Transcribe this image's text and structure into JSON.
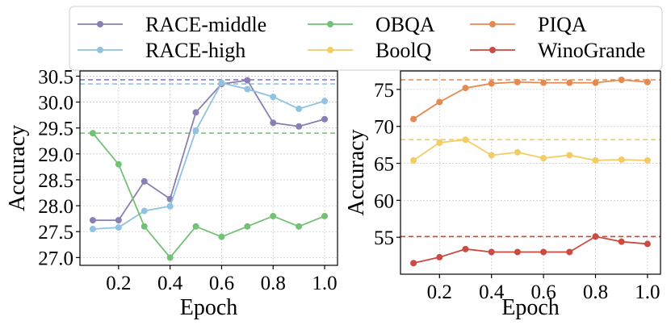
{
  "chart_data": [
    {
      "type": "line",
      "xlabel": "Epoch",
      "ylabel": "Accuracy",
      "xlim": [
        0.05,
        1.05
      ],
      "ylim": [
        26.85,
        30.6
      ],
      "xticks": [
        0.2,
        0.4,
        0.6,
        0.8,
        1.0
      ],
      "xtick_labels": [
        "0.2",
        "0.4",
        "0.6",
        "0.8",
        "1.0"
      ],
      "yticks": [
        27.0,
        27.5,
        28.0,
        28.5,
        29.0,
        29.5,
        30.0,
        30.5
      ],
      "ytick_labels": [
        "27.0",
        "27.5",
        "28.0",
        "28.5",
        "29.0",
        "29.5",
        "30.0",
        "30.5"
      ],
      "grid": true,
      "x": [
        0.1,
        0.2,
        0.3,
        0.4,
        0.5,
        0.6,
        0.7,
        0.8,
        0.9,
        1.0
      ],
      "series": [
        {
          "name": "RACE-middle",
          "color": "#8a7fb3",
          "values": [
            27.72,
            27.72,
            28.47,
            28.13,
            29.8,
            30.35,
            30.42,
            29.6,
            29.53,
            29.67
          ],
          "baseline": 30.43
        },
        {
          "name": "RACE-high",
          "color": "#8fc3df",
          "values": [
            27.55,
            27.58,
            27.9,
            27.99,
            29.45,
            30.37,
            30.25,
            30.1,
            29.87,
            30.02
          ],
          "baseline": 30.35
        },
        {
          "name": "OBQA",
          "color": "#72c175",
          "values": [
            29.4,
            28.8,
            27.6,
            27.0,
            27.6,
            27.4,
            27.6,
            27.8,
            27.6,
            27.8
          ],
          "baseline": 29.4
        }
      ]
    },
    {
      "type": "line",
      "xlabel": "Epoch",
      "ylabel": "Accuracy",
      "xlim": [
        0.05,
        1.05
      ],
      "ylim": [
        50.0,
        77.5
      ],
      "xticks": [
        0.2,
        0.4,
        0.6,
        0.8,
        1.0
      ],
      "xtick_labels": [
        "0.2",
        "0.4",
        "0.6",
        "0.8",
        "1.0"
      ],
      "yticks": [
        55,
        60,
        65,
        70,
        75
      ],
      "ytick_labels": [
        "55",
        "60",
        "65",
        "70",
        "75"
      ],
      "grid": true,
      "x": [
        0.1,
        0.2,
        0.3,
        0.4,
        0.5,
        0.6,
        0.7,
        0.8,
        0.9,
        1.0
      ],
      "series": [
        {
          "name": "PIQA",
          "color": "#e58a4e",
          "values": [
            71.0,
            73.3,
            75.2,
            75.8,
            76.0,
            75.9,
            75.9,
            75.9,
            76.3,
            76.0
          ],
          "baseline": 76.3
        },
        {
          "name": "BoolQ",
          "color": "#f3cd62",
          "values": [
            65.4,
            67.8,
            68.2,
            66.1,
            66.5,
            65.7,
            66.1,
            65.4,
            65.5,
            65.4
          ],
          "baseline": 68.2
        },
        {
          "name": "WinoGrande",
          "color": "#cc4a3f",
          "values": [
            51.5,
            52.3,
            53.4,
            53.0,
            53.0,
            53.0,
            53.0,
            55.1,
            54.4,
            54.1
          ],
          "baseline": 55.1
        }
      ]
    }
  ],
  "legend": {
    "position": "top",
    "columns": 3,
    "entries": [
      "RACE-middle",
      "OBQA",
      "PIQA",
      "RACE-high",
      "BoolQ",
      "WinoGrande"
    ]
  }
}
